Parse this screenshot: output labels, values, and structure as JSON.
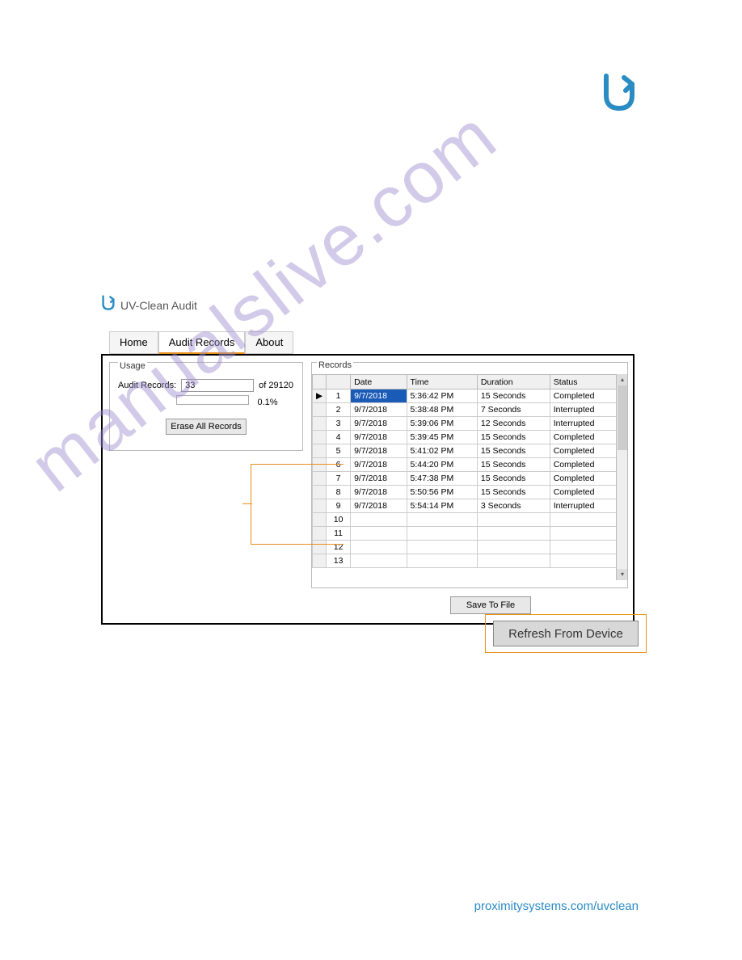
{
  "app": {
    "title": "UV-Clean Audit",
    "tabs": [
      "Home",
      "Audit Records",
      "About"
    ],
    "active_tab": 1
  },
  "usage": {
    "group_label": "Usage",
    "label": "Audit Records:",
    "value": "33",
    "of_label": "of 29120",
    "percent": "0.1%",
    "erase_btn": "Erase All Records"
  },
  "records": {
    "group_label": "Records",
    "columns": [
      "",
      "",
      "Date",
      "Time",
      "Duration",
      "Status"
    ],
    "rows": [
      {
        "n": "1",
        "date": "9/7/2018",
        "time": "5:36:42 PM",
        "dur": "15 Seconds",
        "status": "Completed",
        "ptr": "▶",
        "sel": true
      },
      {
        "n": "2",
        "date": "9/7/2018",
        "time": "5:38:48 PM",
        "dur": "7 Seconds",
        "status": "Interrupted"
      },
      {
        "n": "3",
        "date": "9/7/2018",
        "time": "5:39:06 PM",
        "dur": "12 Seconds",
        "status": "Interrupted"
      },
      {
        "n": "4",
        "date": "9/7/2018",
        "time": "5:39:45 PM",
        "dur": "15 Seconds",
        "status": "Completed"
      },
      {
        "n": "5",
        "date": "9/7/2018",
        "time": "5:41:02 PM",
        "dur": "15 Seconds",
        "status": "Completed"
      },
      {
        "n": "6",
        "date": "9/7/2018",
        "time": "5:44:20 PM",
        "dur": "15 Seconds",
        "status": "Completed"
      },
      {
        "n": "7",
        "date": "9/7/2018",
        "time": "5:47:38 PM",
        "dur": "15 Seconds",
        "status": "Completed"
      },
      {
        "n": "8",
        "date": "9/7/2018",
        "time": "5:50:56 PM",
        "dur": "15 Seconds",
        "status": "Completed"
      },
      {
        "n": "9",
        "date": "9/7/2018",
        "time": "5:54:14 PM",
        "dur": "3 Seconds",
        "status": "Interrupted"
      },
      {
        "n": "10",
        "date": "",
        "time": "",
        "dur": "",
        "status": ""
      },
      {
        "n": "11",
        "date": "",
        "time": "",
        "dur": "",
        "status": ""
      },
      {
        "n": "12",
        "date": "",
        "time": "",
        "dur": "",
        "status": ""
      },
      {
        "n": "13",
        "date": "",
        "time": "",
        "dur": "",
        "status": ""
      }
    ],
    "save_btn": "Save To File"
  },
  "refresh_btn": "Refresh From Device",
  "footer_url": "proximitysystems.com/uvclean",
  "watermark": "manualslive.com",
  "colors": {
    "brand": "#2b8cc4",
    "highlight": "#e8911a",
    "selected": "#1a5bb8"
  }
}
